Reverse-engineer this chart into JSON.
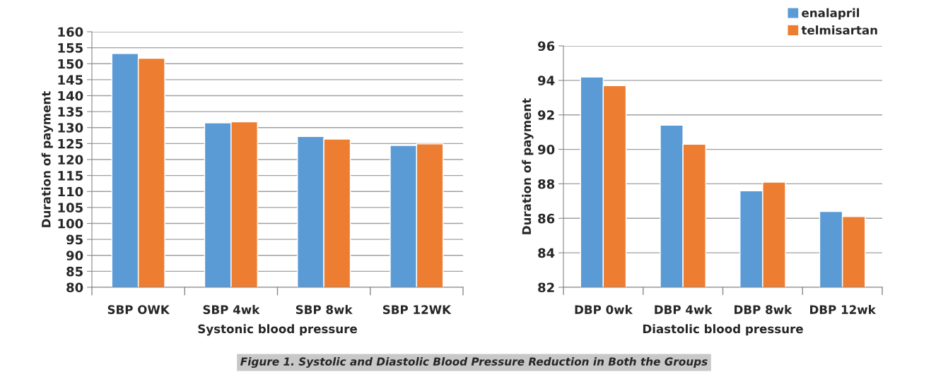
{
  "chart_data": [
    {
      "type": "bar",
      "xlabel": "Systonic blood pressure",
      "ylabel": "Duration of payment",
      "categories": [
        "SBP OWK",
        "SBP 4wk",
        "SBP 8wk",
        "SBP 12WK"
      ],
      "series": [
        {
          "color": "#5b9bd5",
          "values": [
            153.2,
            131.5,
            127.2,
            124.4
          ]
        },
        {
          "color": "#ed7d31",
          "values": [
            151.7,
            131.8,
            126.4,
            124.9
          ]
        }
      ],
      "ylim": [
        80,
        160
      ],
      "yticks": [
        80,
        85,
        90,
        95,
        100,
        105,
        110,
        115,
        120,
        125,
        130,
        135,
        140,
        145,
        150,
        155,
        160
      ],
      "grid": "y",
      "legend": false
    },
    {
      "type": "bar",
      "xlabel": "Diastolic blood pressure",
      "ylabel": "Duration of payment",
      "categories": [
        "DBP 0wk",
        "DBP 4wk",
        "DBP 8wk",
        "DBP 12wk"
      ],
      "series": [
        {
          "name": "enalapril",
          "color": "#5b9bd5",
          "values": [
            94.2,
            91.4,
            87.6,
            86.4
          ]
        },
        {
          "name": "telmisartan",
          "color": "#ed7d31",
          "values": [
            93.7,
            90.3,
            88.1,
            86.1
          ]
        }
      ],
      "ylim": [
        82,
        96
      ],
      "yticks": [
        82,
        84,
        86,
        88,
        90,
        92,
        94,
        96
      ],
      "grid": "y",
      "legend": "top right",
      "annotations": [
        "Figure 1. Systolic and Diastolic Blood Pressure Reduction in Both the Groups"
      ]
    }
  ]
}
